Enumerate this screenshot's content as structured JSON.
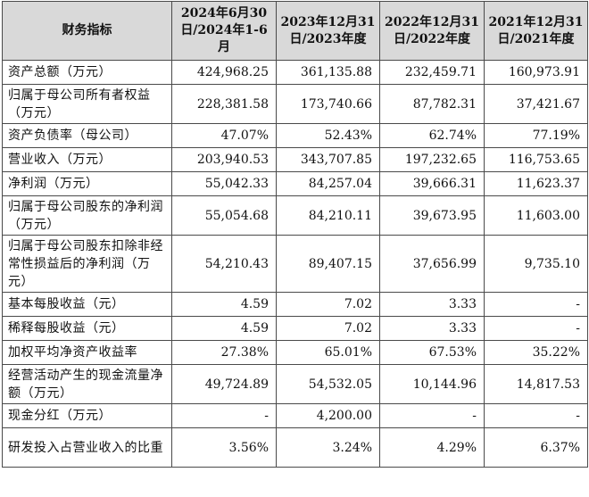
{
  "table": {
    "headers": [
      "财务指标",
      "2024年6月30日/2024年1-6月",
      "2023年12月31日/2023年度",
      "2022年12月31日/2022年度",
      "2021年12月31日/2021年度"
    ],
    "rows": [
      {
        "label": "资产总额（万元）",
        "values": [
          "424,968.25",
          "361,135.88",
          "232,459.71",
          "160,973.91"
        ]
      },
      {
        "label": "归属于母公司所有者权益（万元）",
        "values": [
          "228,381.58",
          "173,740.66",
          "87,782.31",
          "37,421.67"
        ]
      },
      {
        "label": "资产负债率（母公司）",
        "values": [
          "47.07%",
          "52.43%",
          "62.74%",
          "77.19%"
        ]
      },
      {
        "label": "营业收入（万元）",
        "values": [
          "203,940.53",
          "343,707.85",
          "197,232.65",
          "116,753.65"
        ]
      },
      {
        "label": "净利润（万元）",
        "values": [
          "55,042.33",
          "84,257.04",
          "39,666.31",
          "11,623.37"
        ]
      },
      {
        "label": "归属于母公司股东的净利润（万元）",
        "values": [
          "55,054.68",
          "84,210.11",
          "39,673.95",
          "11,603.00"
        ]
      },
      {
        "label": "归属于母公司股东扣除非经常性损益后的净利润（万元）",
        "values": [
          "54,210.43",
          "89,407.15",
          "37,656.99",
          "9,735.10"
        ]
      },
      {
        "label": "基本每股收益（元）",
        "values": [
          "4.59",
          "7.02",
          "3.33",
          "-"
        ]
      },
      {
        "label": "稀释每股收益（元）",
        "values": [
          "4.59",
          "7.02",
          "3.33",
          "-"
        ]
      },
      {
        "label": "加权平均净资产收益率",
        "values": [
          "27.38%",
          "65.01%",
          "67.53%",
          "35.22%"
        ]
      },
      {
        "label": "经营活动产生的现金流量净额（万元）",
        "values": [
          "49,724.89",
          "54,532.05",
          "10,144.96",
          "14,817.53"
        ]
      },
      {
        "label": "现金分红（万元）",
        "values": [
          "-",
          "4,200.00",
          "-",
          "-"
        ]
      },
      {
        "label": "研发投入占营业收入的比重",
        "values": [
          "3.56%",
          "3.24%",
          "4.29%",
          "6.37%"
        ]
      }
    ]
  },
  "colors": {
    "header_bg": "#d9d9d9",
    "border": "#4a4a4a",
    "text": "#111111"
  }
}
